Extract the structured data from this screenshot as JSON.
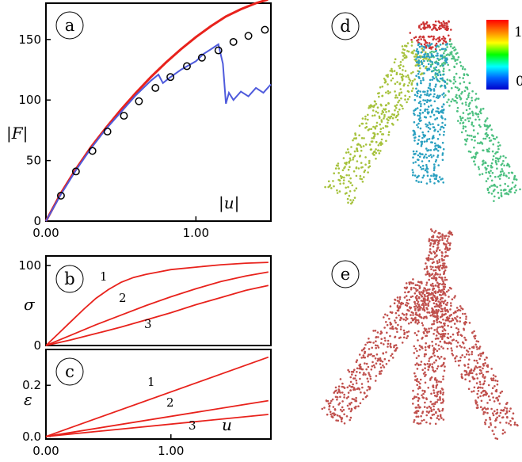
{
  "chart_data": [
    {
      "panel": "a",
      "type": "line",
      "ylabel": "|F|",
      "annotation": "|u|",
      "xlim": [
        0,
        1.5
      ],
      "ylim": [
        0,
        180
      ],
      "x_ticks": [
        {
          "v": 0,
          "label": "0.00"
        },
        {
          "v": 1.0,
          "label": "1.00"
        }
      ],
      "y_ticks": [
        {
          "v": 0,
          "label": "0"
        },
        {
          "v": 50,
          "label": "50"
        },
        {
          "v": 100,
          "label": "100"
        },
        {
          "v": 150,
          "label": "150"
        }
      ],
      "series": [
        {
          "color": "#e8221c",
          "style": "line",
          "x": [
            0,
            0.1,
            0.2,
            0.3,
            0.4,
            0.5,
            0.6,
            0.7,
            0.8,
            0.9,
            1.0,
            1.1,
            1.2,
            1.3,
            1.4,
            1.48
          ],
          "y": [
            0,
            23,
            43,
            61,
            77,
            92,
            106,
            119,
            131,
            142,
            152,
            161,
            169,
            175,
            180,
            183
          ]
        },
        {
          "color": "#4f5bdc",
          "style": "line",
          "x": [
            0,
            0.1,
            0.2,
            0.3,
            0.4,
            0.5,
            0.6,
            0.7,
            0.75,
            0.78,
            0.82,
            0.9,
            1.0,
            1.05,
            1.1,
            1.15,
            1.18,
            1.2,
            1.22,
            1.25,
            1.3,
            1.35,
            1.4,
            1.45,
            1.5
          ],
          "y": [
            0,
            22,
            42,
            60,
            76,
            90,
            104,
            116,
            121,
            114,
            118,
            125,
            132,
            138,
            142,
            146,
            130,
            97,
            106,
            100,
            107,
            103,
            110,
            106,
            113
          ]
        },
        {
          "color": "#000000",
          "style": "markers",
          "x": [
            0.1,
            0.2,
            0.31,
            0.41,
            0.52,
            0.62,
            0.73,
            0.83,
            0.94,
            1.04,
            1.15,
            1.25,
            1.35,
            1.46
          ],
          "y": [
            21,
            41,
            58,
            74,
            87,
            99,
            110,
            119,
            128,
            135,
            141,
            148,
            153,
            158
          ]
        }
      ]
    },
    {
      "panel": "b",
      "type": "line",
      "ylabel": "σ",
      "xlim": [
        0,
        1.8
      ],
      "ylim": [
        0,
        112
      ],
      "y_ticks": [
        {
          "v": 0,
          "label": "0"
        },
        {
          "v": 100,
          "label": "100"
        }
      ],
      "series": [
        {
          "name": "1",
          "color": "#e8221c",
          "x": [
            0,
            0.1,
            0.2,
            0.3,
            0.4,
            0.5,
            0.6,
            0.7,
            0.8,
            0.9,
            1.0,
            1.2,
            1.4,
            1.6,
            1.78
          ],
          "y": [
            0,
            15,
            30,
            45,
            59,
            70,
            79,
            85,
            89,
            92,
            95,
            98,
            101,
            103,
            104
          ]
        },
        {
          "name": "2",
          "color": "#e8221c",
          "x": [
            0,
            0.2,
            0.4,
            0.6,
            0.8,
            1.0,
            1.2,
            1.4,
            1.6,
            1.78
          ],
          "y": [
            0,
            13,
            26,
            38,
            50,
            61,
            71,
            80,
            87,
            92
          ]
        },
        {
          "name": "3",
          "color": "#e8221c",
          "x": [
            0,
            0.2,
            0.4,
            0.6,
            0.8,
            1.0,
            1.2,
            1.4,
            1.6,
            1.78
          ],
          "y": [
            0,
            7,
            15,
            23,
            32,
            41,
            51,
            60,
            69,
            75
          ]
        }
      ]
    },
    {
      "panel": "c",
      "type": "line",
      "ylabel": "ε",
      "annotation": "u",
      "xlim": [
        0,
        1.8
      ],
      "ylim": [
        -0.01,
        0.34
      ],
      "x_ticks": [
        {
          "v": 0,
          "label": "0.00"
        },
        {
          "v": 1.0,
          "label": "1.00"
        }
      ],
      "y_ticks": [
        {
          "v": 0,
          "label": "0.0"
        },
        {
          "v": 0.2,
          "label": "0.2"
        }
      ],
      "series": [
        {
          "name": "1",
          "color": "#e8221c",
          "x": [
            0,
            1.78
          ],
          "y": [
            0,
            0.31
          ]
        },
        {
          "name": "2",
          "color": "#e8221c",
          "x": [
            0,
            1.78
          ],
          "y": [
            0,
            0.14
          ]
        },
        {
          "name": "3",
          "color": "#e8221c",
          "x": [
            0,
            1.78
          ],
          "y": [
            0,
            0.086
          ]
        }
      ]
    }
  ],
  "panel_labels": {
    "a": "a",
    "b": "b",
    "c": "c",
    "d": "d",
    "e": "e"
  },
  "curve_labels": {
    "one": "1",
    "two": "2",
    "three": "3"
  },
  "colorbar": {
    "top_label": "1",
    "bottom_label": "0",
    "colors": [
      "#ff0000",
      "#ff8800",
      "#ffff00",
      "#00ff00",
      "#00ffff",
      "#0066ff",
      "#0000cc"
    ]
  },
  "point_cloud_colors": {
    "d_left": "#a6c23c",
    "d_middle": "#2aa0c0",
    "d_right": "#4cc080",
    "d_top": "#cc3333",
    "e": "#c0504d"
  }
}
